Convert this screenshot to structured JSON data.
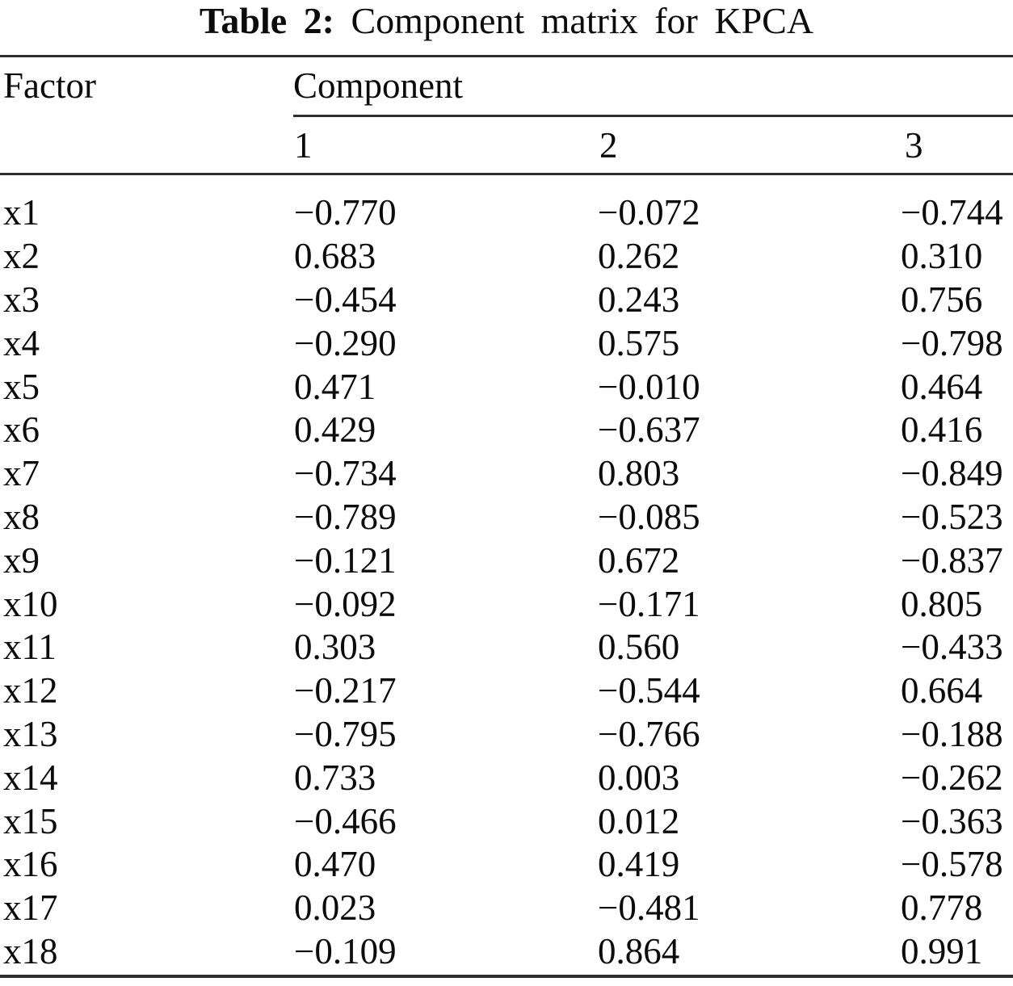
{
  "caption": {
    "label": "Table 2:",
    "text": "Component matrix for KPCA"
  },
  "table": {
    "factor_header": "Factor",
    "component_header": "Component",
    "component_columns": [
      "1",
      "2",
      "3"
    ],
    "rows": [
      {
        "factor": "x1",
        "values": [
          "−0.770",
          "−0.072",
          "−0.744"
        ]
      },
      {
        "factor": "x2",
        "values": [
          "0.683",
          "0.262",
          "0.310"
        ]
      },
      {
        "factor": "x3",
        "values": [
          "−0.454",
          "0.243",
          "0.756"
        ]
      },
      {
        "factor": "x4",
        "values": [
          "−0.290",
          "0.575",
          "−0.798"
        ]
      },
      {
        "factor": "x5",
        "values": [
          "0.471",
          "−0.010",
          "0.464"
        ]
      },
      {
        "factor": "x6",
        "values": [
          "0.429",
          "−0.637",
          "0.416"
        ]
      },
      {
        "factor": "x7",
        "values": [
          "−0.734",
          "0.803",
          "−0.849"
        ]
      },
      {
        "factor": "x8",
        "values": [
          "−0.789",
          "−0.085",
          "−0.523"
        ]
      },
      {
        "factor": "x9",
        "values": [
          "−0.121",
          "0.672",
          "−0.837"
        ]
      },
      {
        "factor": "x10",
        "values": [
          "−0.092",
          "−0.171",
          "0.805"
        ]
      },
      {
        "factor": "x11",
        "values": [
          "0.303",
          "0.560",
          "−0.433"
        ]
      },
      {
        "factor": "x12",
        "values": [
          "−0.217",
          "−0.544",
          "0.664"
        ]
      },
      {
        "factor": "x13",
        "values": [
          "−0.795",
          "−0.766",
          "−0.188"
        ]
      },
      {
        "factor": "x14",
        "values": [
          "0.733",
          "0.003",
          "−0.262"
        ]
      },
      {
        "factor": "x15",
        "values": [
          "−0.466",
          "0.012",
          "−0.363"
        ]
      },
      {
        "factor": "x16",
        "values": [
          "0.470",
          "0.419",
          "−0.578"
        ]
      },
      {
        "factor": "x17",
        "values": [
          "0.023",
          "−0.481",
          "0.778"
        ]
      },
      {
        "factor": "x18",
        "values": [
          "−0.109",
          "0.864",
          "0.991"
        ]
      }
    ],
    "text_color": "#0b0b0b",
    "rule_color": "#2e2e2e"
  }
}
